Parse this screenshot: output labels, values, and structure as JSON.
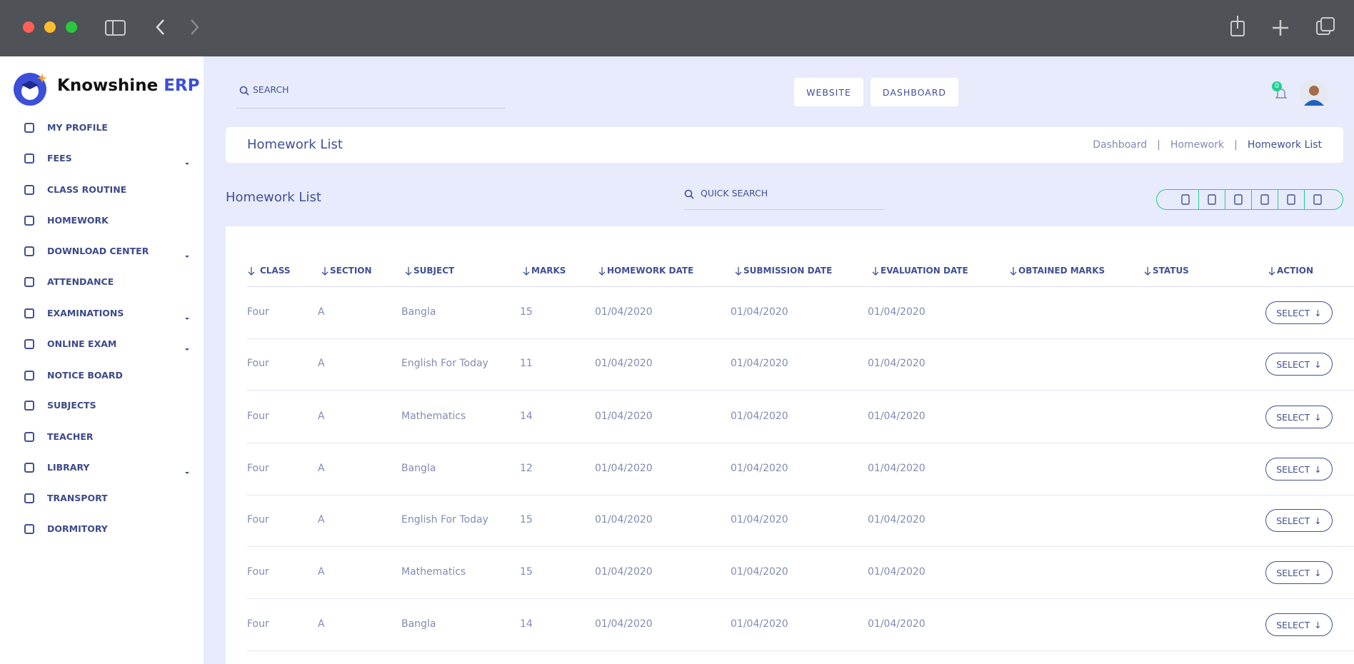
{
  "brand": {
    "name": "Knowshine",
    "suffix": "ERP"
  },
  "sidebar": {
    "items": [
      {
        "label": "MY PROFILE",
        "dropdown": false
      },
      {
        "label": "FEES",
        "dropdown": true
      },
      {
        "label": "CLASS ROUTINE",
        "dropdown": false
      },
      {
        "label": "HOMEWORK",
        "dropdown": false
      },
      {
        "label": "DOWNLOAD CENTER",
        "dropdown": true
      },
      {
        "label": "ATTENDANCE",
        "dropdown": false
      },
      {
        "label": "EXAMINATIONS",
        "dropdown": true
      },
      {
        "label": "ONLINE EXAM",
        "dropdown": true
      },
      {
        "label": "NOTICE BOARD",
        "dropdown": false
      },
      {
        "label": "SUBJECTS",
        "dropdown": false
      },
      {
        "label": "TEACHER",
        "dropdown": false
      },
      {
        "label": "LIBRARY",
        "dropdown": true
      },
      {
        "label": "TRANSPORT",
        "dropdown": false
      },
      {
        "label": "DORMITORY",
        "dropdown": false
      }
    ]
  },
  "topbar": {
    "search": "SEARCH",
    "buttons": [
      "WEBSITE",
      "DASHBOARD"
    ],
    "notifications": 0
  },
  "page_header": {
    "title": "Homework List",
    "breadcrumb": [
      "Dashboard",
      "Homework",
      "Homework List"
    ]
  },
  "section": {
    "title": "Homework List",
    "quick_search": "QUICK SEARCH"
  },
  "table": {
    "columns": [
      "CLASS",
      "SECTION",
      "SUBJECT",
      "MARKS",
      "HOMEWORK DATE",
      "SUBMISSION DATE",
      "EVALUATION DATE",
      "OBTAINED MARKS",
      "STATUS",
      "ACTION"
    ],
    "action_label": "SELECT",
    "rows": [
      [
        "Four",
        "A",
        "Bangla",
        15,
        "01/04/2020",
        "01/04/2020",
        "01/04/2020"
      ],
      [
        "Four",
        "A",
        "English For Today",
        11,
        "01/04/2020",
        "01/04/2020",
        "01/04/2020"
      ],
      [
        "Four",
        "A",
        "Mathematics",
        14,
        "01/04/2020",
        "01/04/2020",
        "01/04/2020"
      ],
      [
        "Four",
        "A",
        "Bangla",
        12,
        "01/04/2020",
        "01/04/2020",
        "01/04/2020"
      ],
      [
        "Four",
        "A",
        "English For Today",
        15,
        "01/04/2020",
        "01/04/2020",
        "01/04/2020"
      ],
      [
        "Four",
        "A",
        "Mathematics",
        15,
        "01/04/2020",
        "01/04/2020",
        "01/04/2020"
      ],
      [
        "Four",
        "A",
        "Bangla",
        14,
        "01/04/2020",
        "01/04/2020",
        "01/04/2020"
      ]
    ]
  }
}
